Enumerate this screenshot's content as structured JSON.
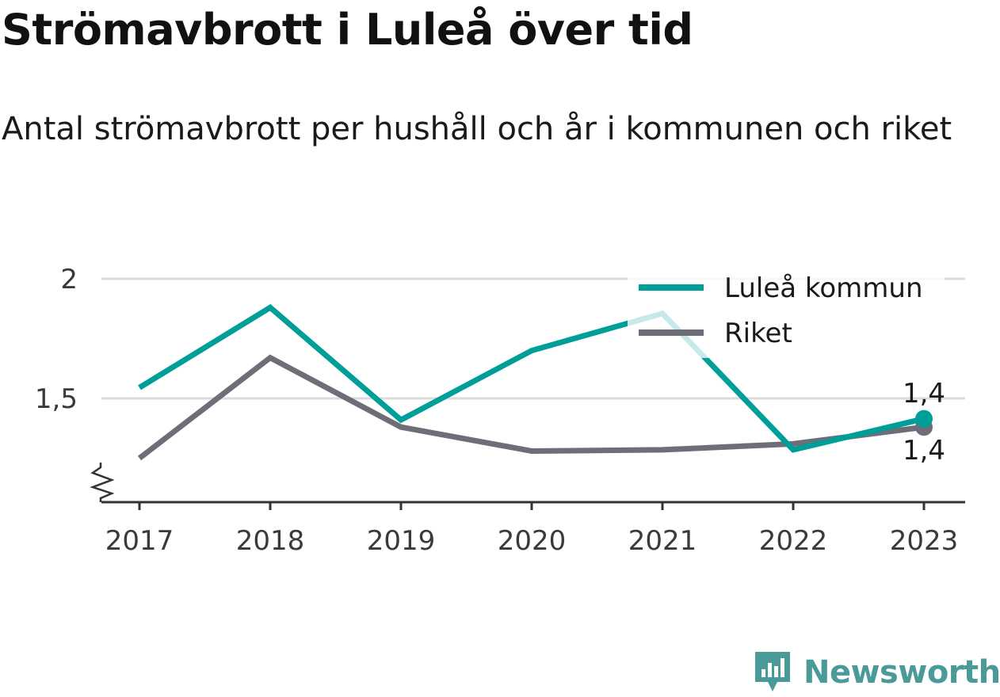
{
  "title": "Strömavbrott i Luleå över tid",
  "subtitle": "Antal strömavbrott per hushåll och år i kommunen och riket",
  "brand": {
    "name": "Newsworthy",
    "icon": "newsworthy-logo-icon",
    "color": "#4a9a9a"
  },
  "chart_data": {
    "type": "line",
    "title": "Strömavbrott i Luleå över tid",
    "subtitle": "Antal strömavbrott per hushåll och år i kommunen och riket",
    "xlabel": "",
    "ylabel": "",
    "x": [
      "2017",
      "2018",
      "2019",
      "2020",
      "2021",
      "2022",
      "2023"
    ],
    "ylim": [
      1.1,
      2.0
    ],
    "y_ticks": [
      1.5,
      2.0
    ],
    "y_tick_labels": [
      "1,5",
      "2"
    ],
    "axis_break": true,
    "grid": true,
    "legend_position": "top-right",
    "series": [
      {
        "name": "Luleå kommun",
        "color": "#009e98",
        "values": [
          1.545,
          1.88,
          1.41,
          1.7,
          1.855,
          1.285,
          1.415
        ],
        "end_label": "1,4"
      },
      {
        "name": "Riket",
        "color": "#6e6e78",
        "values": [
          1.25,
          1.67,
          1.38,
          1.28,
          1.285,
          1.31,
          1.38
        ],
        "end_label": "1,4"
      }
    ]
  }
}
